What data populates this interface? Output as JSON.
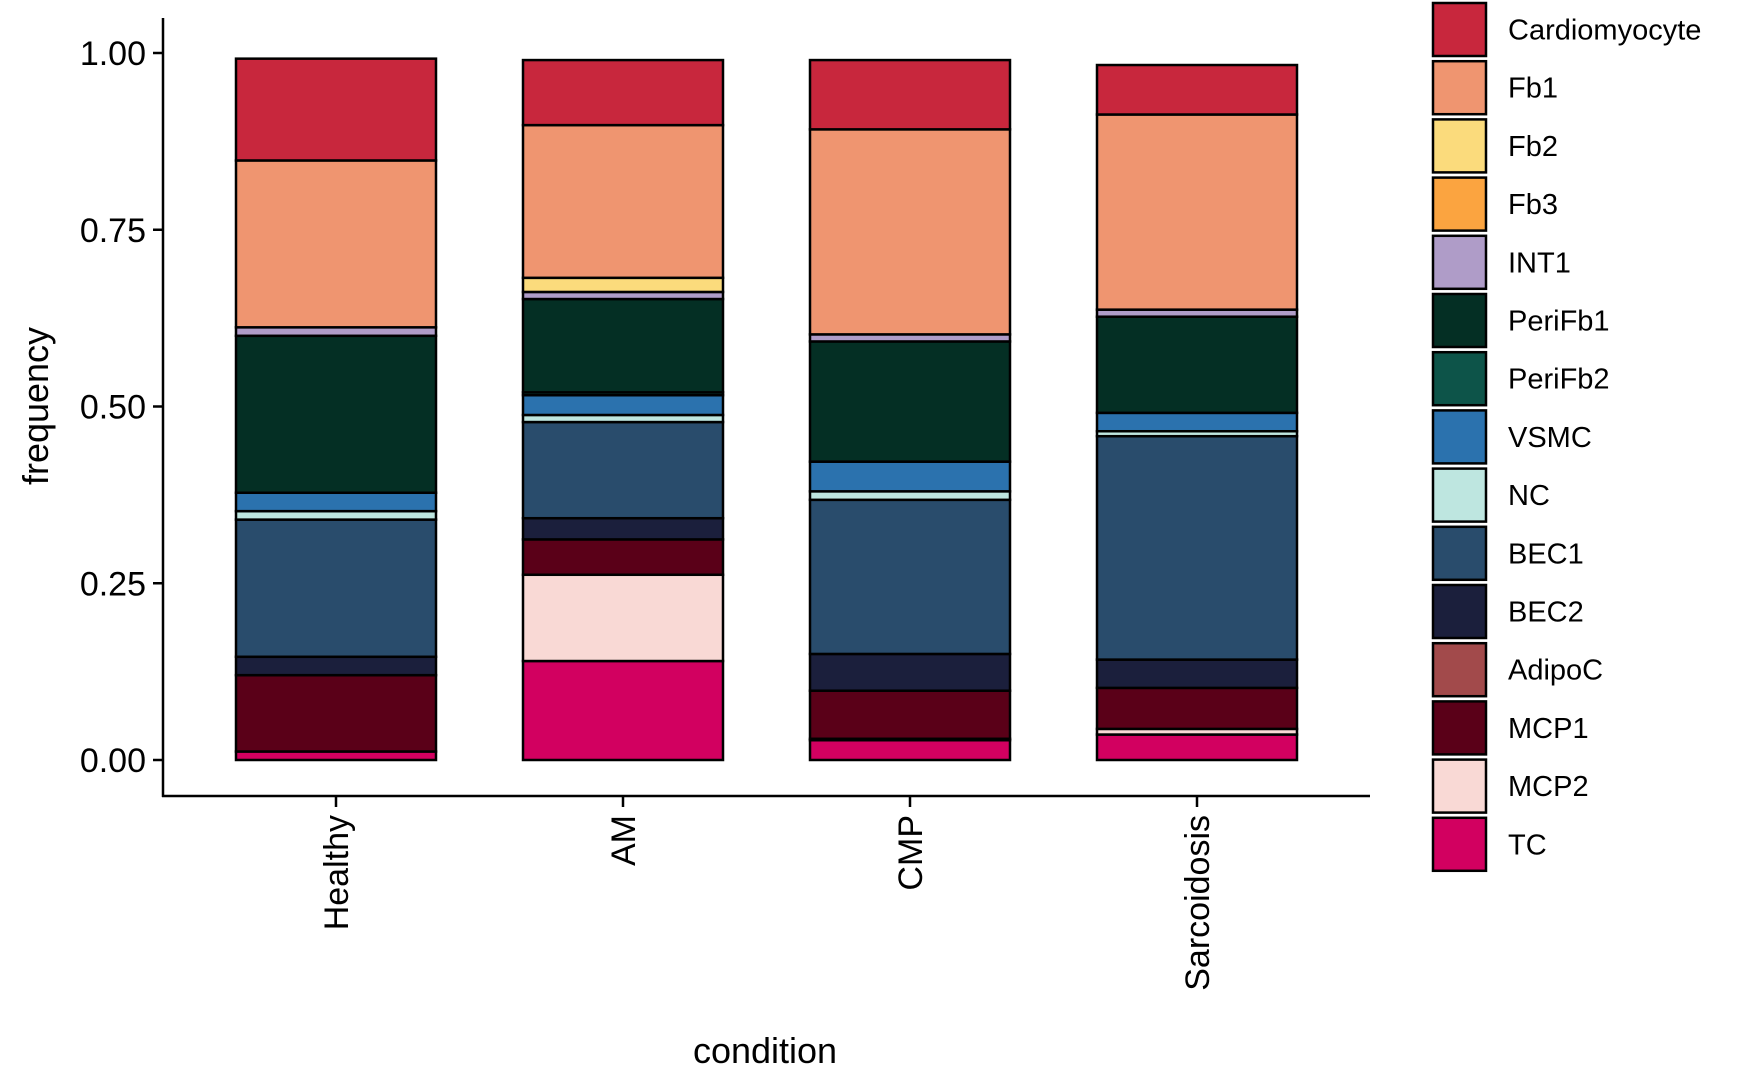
{
  "chart_data": {
    "type": "bar",
    "stacked": true,
    "xlabel": "condition",
    "ylabel": "frequency",
    "ylim": [
      0,
      1
    ],
    "y_ticks": [
      "0.00",
      "0.25",
      "0.50",
      "0.75",
      "1.00"
    ],
    "categories": [
      "Healthy",
      "AM",
      "CMP",
      "Sarcoidosis"
    ],
    "grid": false,
    "legend_position": "right",
    "series": [
      {
        "name": "TC",
        "color": "#D20060",
        "values": [
          0.012,
          0.14,
          0.028,
          0.036
        ]
      },
      {
        "name": "MCP2",
        "color": "#F9D9D5",
        "values": [
          0.0,
          0.122,
          0.002,
          0.008
        ]
      },
      {
        "name": "MCP1",
        "color": "#5A0018",
        "values": [
          0.108,
          0.05,
          0.068,
          0.058
        ]
      },
      {
        "name": "AdipoC",
        "color": "#A24A4B",
        "values": [
          0.0,
          0.0,
          0.0,
          0.0
        ]
      },
      {
        "name": "BEC2",
        "color": "#1B1F3C",
        "values": [
          0.026,
          0.03,
          0.052,
          0.04
        ]
      },
      {
        "name": "BEC1",
        "color": "#294C6C",
        "values": [
          0.194,
          0.136,
          0.218,
          0.316
        ]
      },
      {
        "name": "NC",
        "color": "#BEE6E0",
        "values": [
          0.012,
          0.01,
          0.012,
          0.007
        ]
      },
      {
        "name": "VSMC",
        "color": "#2B72AE",
        "values": [
          0.026,
          0.028,
          0.042,
          0.026
        ]
      },
      {
        "name": "PeriFb2",
        "color": "#0D5449",
        "values": [
          0.0,
          0.004,
          0.0,
          0.0
        ]
      },
      {
        "name": "PeriFb1",
        "color": "#042F24",
        "values": [
          0.222,
          0.132,
          0.17,
          0.136
        ]
      },
      {
        "name": "INT1",
        "color": "#AF9CC8",
        "values": [
          0.012,
          0.01,
          0.01,
          0.01
        ]
      },
      {
        "name": "Fb3",
        "color": "#FBA440",
        "values": [
          0.0,
          0.0,
          0.0,
          0.0
        ]
      },
      {
        "name": "Fb2",
        "color": "#FBDB7C",
        "values": [
          0.0,
          0.02,
          0.0,
          0.0
        ]
      },
      {
        "name": "Fb1",
        "color": "#EF9570",
        "values": [
          0.236,
          0.216,
          0.29,
          0.276
        ]
      },
      {
        "name": "Cardiomyocyte",
        "color": "#C8273D",
        "values": [
          0.144,
          0.092,
          0.098,
          0.07
        ]
      }
    ],
    "legend_order": [
      "Cardiomyocyte",
      "Fb1",
      "Fb2",
      "Fb3",
      "INT1",
      "PeriFb1",
      "PeriFb2",
      "VSMC",
      "NC",
      "BEC1",
      "BEC2",
      "AdipoC",
      "MCP1",
      "MCP2",
      "TC"
    ]
  }
}
